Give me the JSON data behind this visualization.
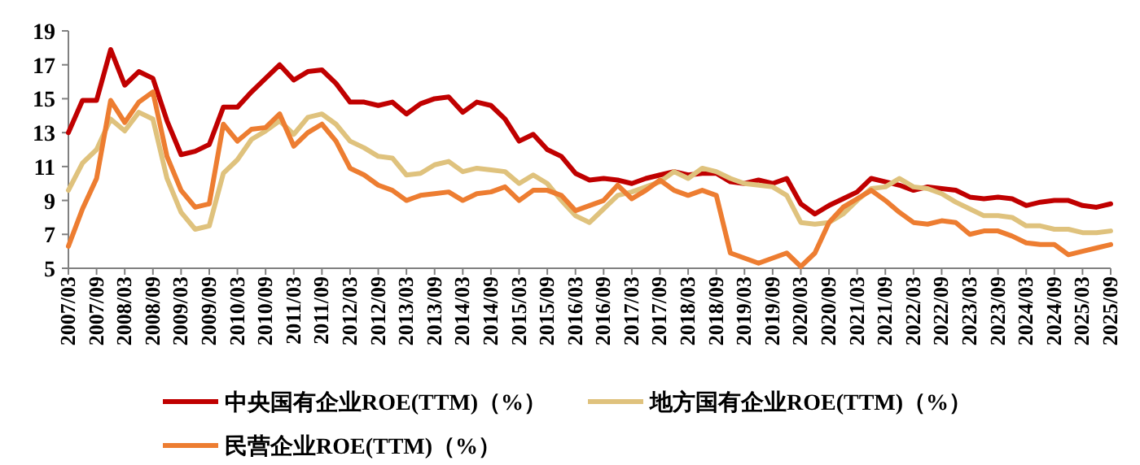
{
  "chart_data": {
    "type": "line",
    "categories": [
      "2007/03",
      null,
      "2007/09",
      null,
      "2008/03",
      null,
      "2008/09",
      null,
      "2009/03",
      null,
      "2009/09",
      null,
      "2010/03",
      null,
      "2010/09",
      null,
      "2011/03",
      null,
      "2011/09",
      null,
      "2012/03",
      null,
      "2012/09",
      null,
      "2013/03",
      null,
      "2013/09",
      null,
      "2014/03",
      null,
      "2014/09",
      null,
      "2015/03",
      null,
      "2015/09",
      null,
      "2016/03",
      null,
      "2016/09",
      null,
      "2017/03",
      null,
      "2017/09",
      null,
      "2018/03",
      null,
      "2018/09",
      null,
      "2019/03",
      null,
      "2019/09",
      null,
      "2020/03",
      null,
      "2020/09",
      null,
      "2021/03",
      null,
      "2021/09",
      null,
      "2022/03",
      null,
      "2022/09",
      null,
      "2023/03",
      null,
      "2023/09",
      null,
      "2024/03",
      null,
      "2024/09",
      null,
      "2025/03",
      null,
      "2025/09"
    ],
    "series": [
      {
        "name": "中央国有企业ROE(TTM)（%）",
        "color": "#c00000",
        "values": [
          13.0,
          14.9,
          14.9,
          17.9,
          15.8,
          16.6,
          16.2,
          13.7,
          11.7,
          11.9,
          12.3,
          14.5,
          14.5,
          15.4,
          16.2,
          17.0,
          16.1,
          16.6,
          16.7,
          15.9,
          14.8,
          14.8,
          14.6,
          14.8,
          14.1,
          14.7,
          15.0,
          15.1,
          14.2,
          14.8,
          14.6,
          13.8,
          12.5,
          12.9,
          12.0,
          11.6,
          10.6,
          10.2,
          10.3,
          10.2,
          10.0,
          10.3,
          10.5,
          10.7,
          10.5,
          10.6,
          10.6,
          10.1,
          10.0,
          10.2,
          10.0,
          10.3,
          8.8,
          8.2,
          8.7,
          9.1,
          9.5,
          10.3,
          10.1,
          9.9,
          9.6,
          9.8,
          9.7,
          9.6,
          9.2,
          9.1,
          9.2,
          9.1,
          8.7,
          8.9,
          9.0,
          9.0,
          8.7,
          8.6,
          8.8
        ]
      },
      {
        "name": "地方国有企业ROE(TTM)（%）",
        "color": "#dfc27d",
        "values": [
          9.6,
          11.2,
          12.0,
          13.8,
          13.1,
          14.2,
          13.8,
          10.3,
          8.3,
          7.3,
          7.5,
          10.6,
          11.4,
          12.6,
          13.1,
          13.7,
          12.9,
          13.9,
          14.1,
          13.5,
          12.5,
          12.1,
          11.6,
          11.5,
          10.5,
          10.6,
          11.1,
          11.3,
          10.7,
          10.9,
          10.8,
          10.7,
          10.0,
          10.5,
          10.0,
          9.0,
          8.1,
          7.7,
          8.5,
          9.3,
          9.5,
          9.8,
          10.1,
          10.7,
          10.3,
          10.9,
          10.7,
          10.3,
          10.0,
          9.9,
          9.8,
          9.3,
          7.7,
          7.6,
          7.7,
          8.2,
          9.0,
          9.7,
          9.8,
          10.3,
          9.8,
          9.7,
          9.4,
          8.9,
          8.5,
          8.1,
          8.1,
          8.0,
          7.5,
          7.5,
          7.3,
          7.3,
          7.1,
          7.1,
          7.2
        ]
      },
      {
        "name": "民营企业ROE(TTM)（%）",
        "color": "#ed7d31",
        "values": [
          6.3,
          8.5,
          10.3,
          14.9,
          13.6,
          14.8,
          15.4,
          11.6,
          9.6,
          8.6,
          8.8,
          13.5,
          12.5,
          13.2,
          13.3,
          14.1,
          12.2,
          13.0,
          13.5,
          12.5,
          10.9,
          10.5,
          9.9,
          9.6,
          9.0,
          9.3,
          9.4,
          9.5,
          9.0,
          9.4,
          9.5,
          9.8,
          9.0,
          9.6,
          9.6,
          9.3,
          8.4,
          8.7,
          9.0,
          9.9,
          9.1,
          9.6,
          10.2,
          9.6,
          9.3,
          9.6,
          9.3,
          5.9,
          5.6,
          5.3,
          5.6,
          5.9,
          5.1,
          5.9,
          7.7,
          8.6,
          9.1,
          9.6,
          9.0,
          8.3,
          7.7,
          7.6,
          7.8,
          7.7,
          7.0,
          7.2,
          7.2,
          6.9,
          6.5,
          6.4,
          6.4,
          5.8,
          6.0,
          6.2,
          6.4
        ]
      }
    ],
    "ylim": [
      5,
      19
    ],
    "yticks": [
      5,
      7,
      9,
      11,
      13,
      15,
      17,
      19
    ],
    "legend": "bottom"
  }
}
